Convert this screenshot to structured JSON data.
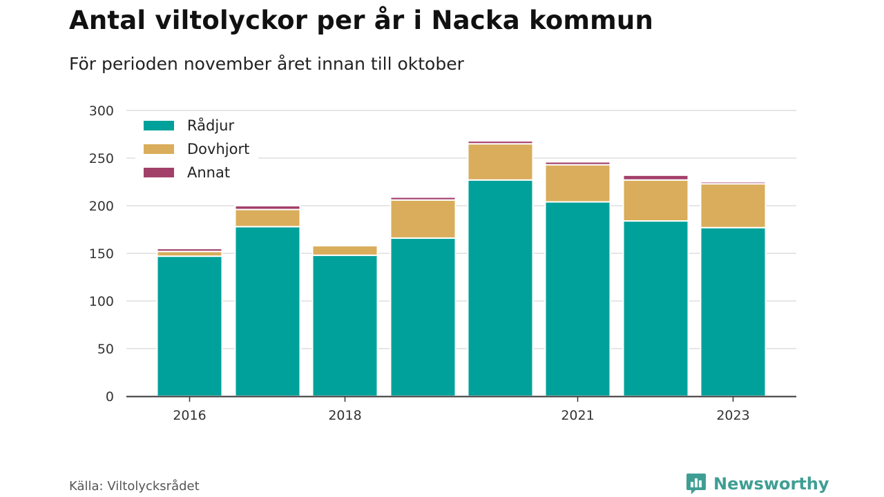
{
  "title": "Antal viltolyckor per år i Nacka kommun",
  "subtitle": "För perioden november året innan till oktober",
  "source": "Källa: Viltolycksrådet",
  "brand": "Newsworthy",
  "colors": {
    "radjur": "#00a19a",
    "dovhjort": "#d9ad5b",
    "annat": "#a3406a",
    "grid": "#dddddd",
    "axis": "#333333",
    "brand": "#3f9e93"
  },
  "chart_data": {
    "type": "bar",
    "stacked": true,
    "categories": [
      "2016",
      "2017",
      "2018",
      "2019",
      "2020",
      "2021",
      "2022",
      "2023"
    ],
    "tick_labels": [
      "2016",
      "",
      "2018",
      "",
      "",
      "2021",
      "",
      "2023"
    ],
    "series": [
      {
        "name": "Rådjur",
        "values": [
          147,
          178,
          148,
          166,
          227,
          204,
          184,
          177
        ]
      },
      {
        "name": "Dovhjort",
        "values": [
          5,
          18,
          10,
          40,
          38,
          39,
          43,
          46
        ]
      },
      {
        "name": "Annat",
        "values": [
          3,
          4,
          1,
          3,
          3,
          3,
          5,
          2
        ]
      }
    ],
    "yticks": [
      0,
      50,
      100,
      150,
      200,
      250,
      300
    ],
    "ylim": [
      0,
      300
    ],
    "legend_position": "top-left",
    "grid": true
  }
}
